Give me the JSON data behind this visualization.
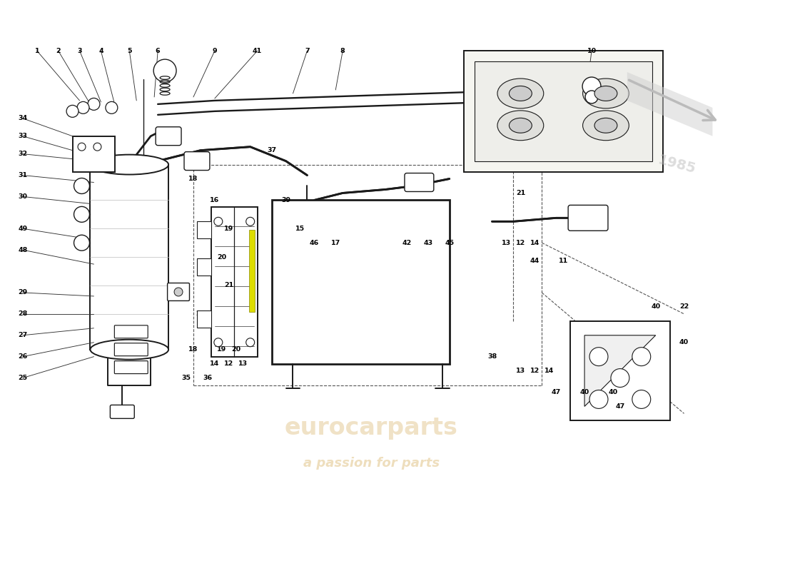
{
  "bg_color": "#ffffff",
  "line_color": "#1a1a1a",
  "watermark_text": "a passion for parts",
  "watermark_text2": "eurocarparts",
  "fig_width": 11.0,
  "fig_height": 8.0,
  "dpi": 100
}
